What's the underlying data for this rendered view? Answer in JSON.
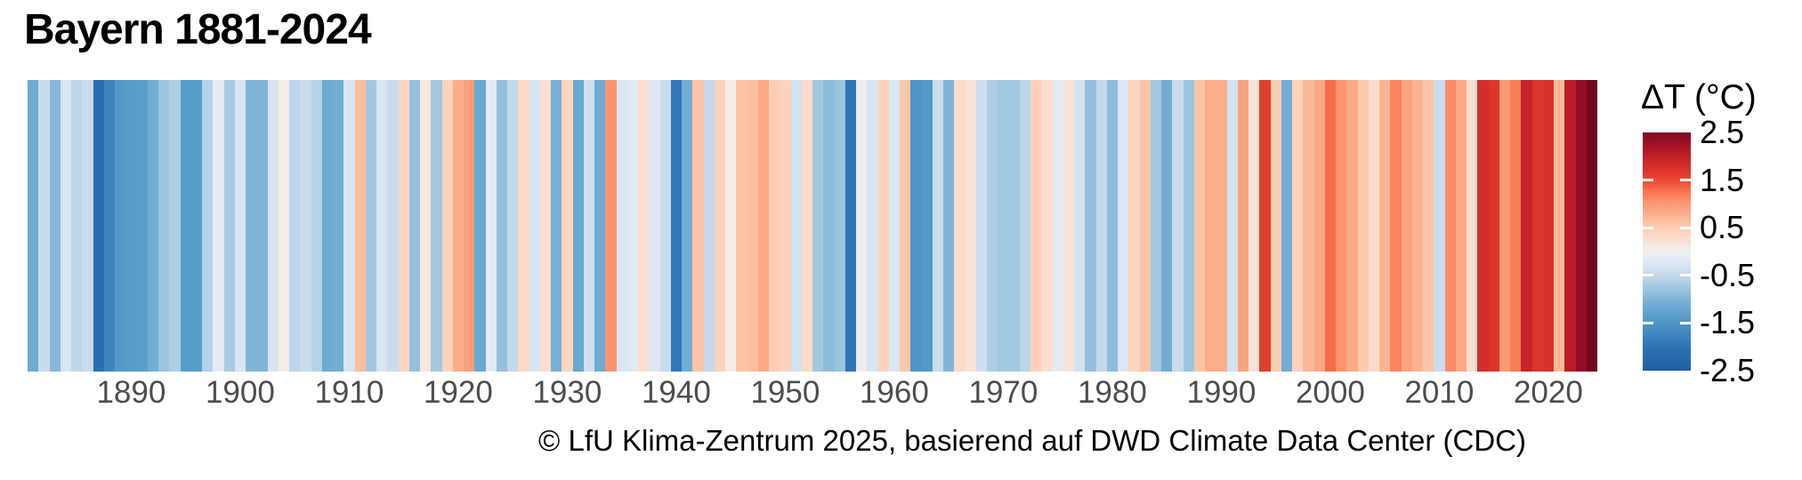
{
  "title": "Bayern 1881-2024",
  "caption": "© LfU Klima-Zentrum 2025, basierend auf DWD Climate Data Center (CDC)",
  "legend": {
    "title": "ΔT (°C)",
    "tick_labels": [
      "2.5",
      "1.5",
      "0.5",
      "-0.5",
      "-1.5",
      "-2.5"
    ],
    "tick_values": [
      2.5,
      1.5,
      0.5,
      -0.5,
      -1.5,
      -2.5
    ],
    "bar_top_value": 2.5,
    "bar_bottom_value": -2.5
  },
  "chart_data": {
    "type": "heatmap",
    "subtype": "warming-stripes",
    "title": "Bayern 1881-2024",
    "xlabel": "",
    "ylabel": "ΔT (°C)",
    "x_range": [
      1881,
      2024
    ],
    "value_range": [
      -2.5,
      2.5
    ],
    "grid": false,
    "legend_position": "right",
    "xticks": [
      1890,
      1900,
      1910,
      1920,
      1930,
      1940,
      1950,
      1960,
      1970,
      1980,
      1990,
      2000,
      2010,
      2020
    ],
    "years": [
      1881,
      1882,
      1883,
      1884,
      1885,
      1886,
      1887,
      1888,
      1889,
      1890,
      1891,
      1892,
      1893,
      1894,
      1895,
      1896,
      1897,
      1898,
      1899,
      1900,
      1901,
      1902,
      1903,
      1904,
      1905,
      1906,
      1907,
      1908,
      1909,
      1910,
      1911,
      1912,
      1913,
      1914,
      1915,
      1916,
      1917,
      1918,
      1919,
      1920,
      1921,
      1922,
      1923,
      1924,
      1925,
      1926,
      1927,
      1928,
      1929,
      1930,
      1931,
      1932,
      1933,
      1934,
      1935,
      1936,
      1937,
      1938,
      1939,
      1940,
      1941,
      1942,
      1943,
      1944,
      1945,
      1946,
      1947,
      1948,
      1949,
      1950,
      1951,
      1952,
      1953,
      1954,
      1955,
      1956,
      1957,
      1958,
      1959,
      1960,
      1961,
      1962,
      1963,
      1964,
      1965,
      1966,
      1967,
      1968,
      1969,
      1970,
      1971,
      1972,
      1973,
      1974,
      1975,
      1976,
      1977,
      1978,
      1979,
      1980,
      1981,
      1982,
      1983,
      1984,
      1985,
      1986,
      1987,
      1988,
      1989,
      1990,
      1991,
      1992,
      1993,
      1994,
      1995,
      1996,
      1997,
      1998,
      1999,
      2000,
      2001,
      2002,
      2003,
      2004,
      2005,
      2006,
      2007,
      2008,
      2009,
      2010,
      2011,
      2012,
      2013,
      2014,
      2015,
      2016,
      2017,
      2018,
      2019,
      2020,
      2021,
      2022,
      2023,
      2024
    ],
    "values": [
      -1.15,
      -0.45,
      -0.95,
      -0.3,
      -0.55,
      -0.45,
      -2.1,
      -1.75,
      -1.45,
      -1.4,
      -1.35,
      -1.1,
      -0.8,
      -0.65,
      -1.4,
      -1.4,
      -0.6,
      -0.15,
      -0.7,
      -0.3,
      -1.0,
      -1.0,
      -0.3,
      0.1,
      -0.55,
      -0.45,
      -0.6,
      -1.15,
      -1.1,
      -0.3,
      0.65,
      -0.75,
      -0.3,
      -0.45,
      0.4,
      -0.85,
      0.15,
      -0.75,
      0.45,
      0.8,
      0.95,
      -1.2,
      -0.15,
      -0.85,
      -0.5,
      0.35,
      -0.3,
      0.25,
      -1.05,
      0.4,
      -1.2,
      -0.4,
      -1.15,
      1.05,
      -0.25,
      -0.2,
      0.25,
      -0.25,
      -0.45,
      -1.95,
      -1.1,
      0.6,
      -0.5,
      0.45,
      0.1,
      0.6,
      0.65,
      0.85,
      0.5,
      0.45,
      -0.35,
      0.3,
      -0.75,
      -0.9,
      -0.8,
      -2.0,
      0.0,
      -0.3,
      0.45,
      -0.25,
      0.55,
      -1.5,
      -1.45,
      -0.45,
      -1.0,
      0.3,
      0.2,
      -0.4,
      -0.65,
      -0.75,
      -0.75,
      -0.55,
      0.45,
      0.25,
      -0.15,
      0.2,
      -0.35,
      -0.85,
      -0.5,
      -0.9,
      -0.25,
      0.4,
      0.6,
      -0.75,
      -1.1,
      -0.45,
      -0.8,
      0.6,
      0.8,
      0.8,
      -0.35,
      0.9,
      0.2,
      1.6,
      0.5,
      -1.1,
      0.45,
      0.7,
      0.85,
      1.3,
      1.05,
      0.85,
      0.55,
      0.3,
      0.75,
      1.15,
      0.9,
      0.75,
      0.6,
      -0.45,
      1.1,
      0.85,
      0.25,
      1.8,
      1.7,
      1.0,
      1.2,
      1.95,
      1.7,
      1.75,
      0.7,
      2.05,
      2.35,
      2.6
    ],
    "palette": [
      {
        "v": -2.5,
        "c": "#1d5fa3"
      },
      {
        "v": -2.1,
        "c": "#2a6eb0"
      },
      {
        "v": -1.8,
        "c": "#3a80bc"
      },
      {
        "v": -1.45,
        "c": "#539ac8"
      },
      {
        "v": -1.1,
        "c": "#72add3"
      },
      {
        "v": -0.85,
        "c": "#95c0dd"
      },
      {
        "v": -0.6,
        "c": "#b5d2e8"
      },
      {
        "v": -0.4,
        "c": "#cfdfef"
      },
      {
        "v": -0.2,
        "c": "#e0eaf5"
      },
      {
        "v": -0.05,
        "c": "#edeef3"
      },
      {
        "v": 0.1,
        "c": "#f5ece6"
      },
      {
        "v": 0.25,
        "c": "#fbded0"
      },
      {
        "v": 0.45,
        "c": "#fcd2bb"
      },
      {
        "v": 0.65,
        "c": "#fbbf9f"
      },
      {
        "v": 0.85,
        "c": "#fba886"
      },
      {
        "v": 1.05,
        "c": "#fa9470"
      },
      {
        "v": 1.25,
        "c": "#f7764f"
      },
      {
        "v": 1.45,
        "c": "#ef5138"
      },
      {
        "v": 1.65,
        "c": "#e0382c"
      },
      {
        "v": 1.85,
        "c": "#cf2b2a"
      },
      {
        "v": 2.05,
        "c": "#bb1c28"
      },
      {
        "v": 2.25,
        "c": "#a11125"
      },
      {
        "v": 2.45,
        "c": "#860b21"
      },
      {
        "v": 2.65,
        "c": "#6d051c"
      }
    ]
  }
}
